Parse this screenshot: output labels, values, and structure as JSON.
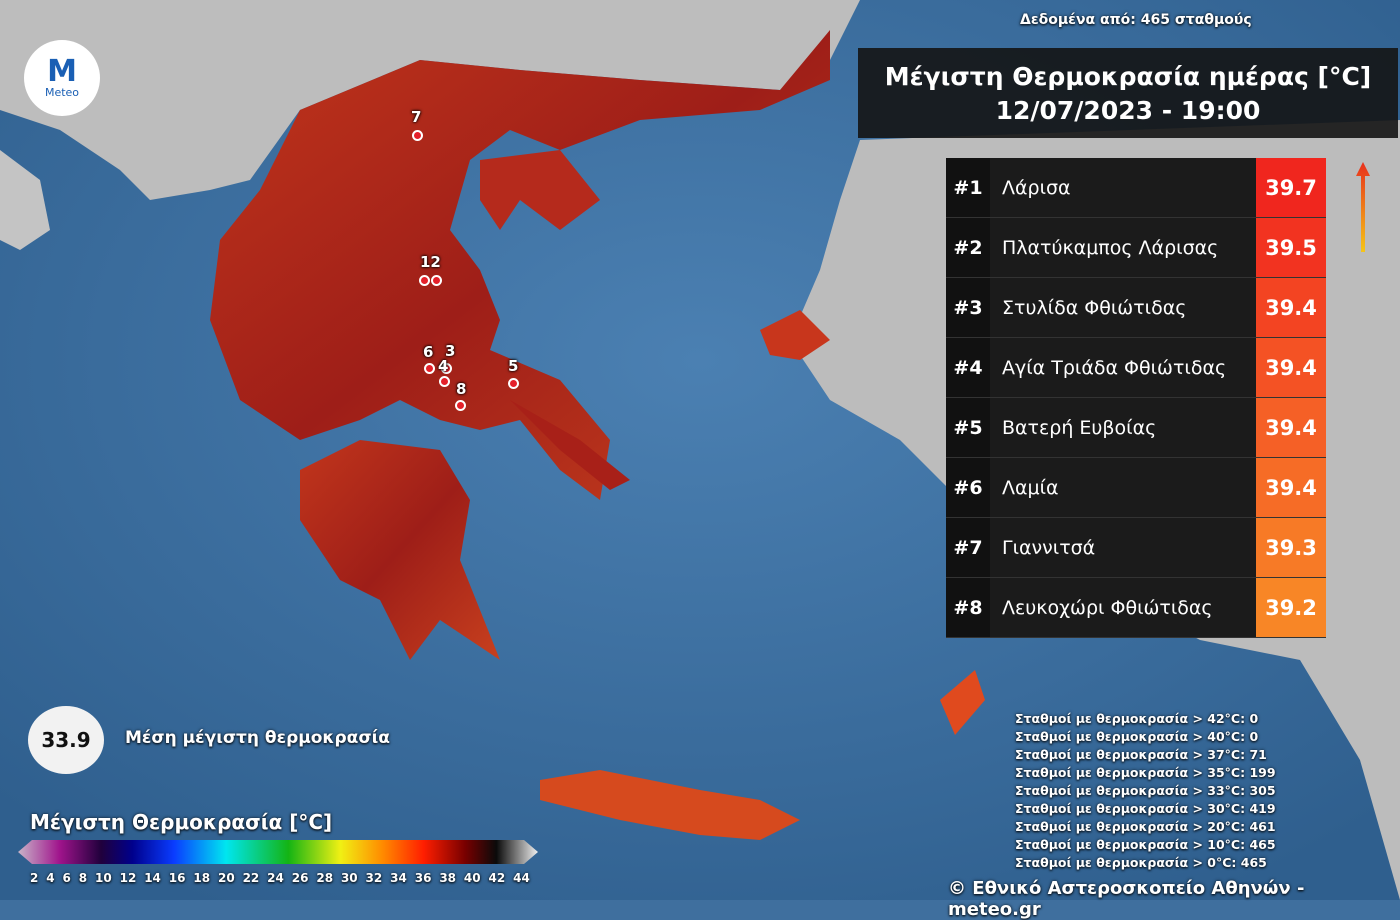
{
  "source_note": "Δεδομένα από: 465 σταθμούς",
  "logo": {
    "mark": "M",
    "text": "Meteo"
  },
  "title": {
    "line1": "Μέγιστη Θερμοκρασία ημέρας [°C]",
    "line2": "12/07/2023 - 19:00"
  },
  "ranking": [
    {
      "rank": "#1",
      "name": "Λάρισα",
      "value": "39.7",
      "color": "#f0261e"
    },
    {
      "rank": "#2",
      "name": "Πλατύκαμπος Λάρισας",
      "value": "39.5",
      "color": "#f23320"
    },
    {
      "rank": "#3",
      "name": "Στυλίδα Φθιώτιδας",
      "value": "39.4",
      "color": "#f34422"
    },
    {
      "rank": "#4",
      "name": "Αγία Τριάδα Φθιώτιδας",
      "value": "39.4",
      "color": "#f45224"
    },
    {
      "rank": "#5",
      "name": "Βατερή Ευβοίας",
      "value": "39.4",
      "color": "#f56026"
    },
    {
      "rank": "#6",
      "name": "Λαμία",
      "value": "39.4",
      "color": "#f66c26"
    },
    {
      "rank": "#7",
      "name": "Γιαννιτσά",
      "value": "39.3",
      "color": "#f77a26"
    },
    {
      "rank": "#8",
      "name": "Λευκοχώρι Φθιώτιδας",
      "value": "39.2",
      "color": "#f88626"
    }
  ],
  "markers": [
    {
      "label": "7"
    },
    {
      "label": "12"
    },
    {
      "label": "6"
    },
    {
      "label": "3"
    },
    {
      "label": "4"
    },
    {
      "label": "8"
    },
    {
      "label": "5"
    }
  ],
  "average": {
    "value": "33.9",
    "label": "Μέση μέγιστη θερμοκρασία"
  },
  "legend": {
    "title": "Μέγιστη Θερμοκρασία [°C]",
    "ticks": [
      "2",
      "4",
      "6",
      "8",
      "10",
      "12",
      "14",
      "16",
      "18",
      "20",
      "22",
      "24",
      "26",
      "28",
      "30",
      "32",
      "34",
      "36",
      "38",
      "40",
      "42",
      "44"
    ]
  },
  "stats": [
    "Σταθμοί με θερμοκρασία > 42°C: 0",
    "Σταθμοί με θερμοκρασία > 40°C: 0",
    "Σταθμοί με θερμοκρασία > 37°C: 71",
    "Σταθμοί με θερμοκρασία > 35°C: 199",
    "Σταθμοί με θερμοκρασία > 33°C: 305",
    "Σταθμοί με θερμοκρασία > 30°C: 419",
    "Σταθμοί με θερμοκρασία > 20°C: 461",
    "Σταθμοί με θερμοκρασία > 10°C: 465",
    "Σταθμοί με θερμοκρασία > 0°C: 465"
  ],
  "copyright": "© Εθνικό Αστεροσκοπείο Αθηνών - meteo.gr",
  "colors": {
    "sea": "#3f6f9e",
    "land_foreign": "#bdbdbd",
    "land_greece": "#b8241c"
  }
}
